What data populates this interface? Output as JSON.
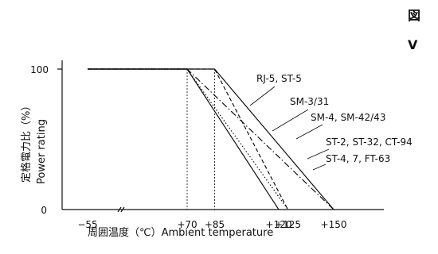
{
  "page": {
    "corner_text_1": "図",
    "corner_text_2": "V"
  },
  "chart_data": {
    "type": "line",
    "title": "",
    "xlabel": "周囲温度（℃）Ambient temperature",
    "ylabel_jp": "定格電力比（%）",
    "ylabel_en": "Power rating",
    "x_break_between": [
      -55,
      70
    ],
    "xlim": [
      -55,
      150
    ],
    "ylim": [
      0,
      100
    ],
    "x_ticks": [
      {
        "value": -55,
        "label": "−55"
      },
      {
        "value": 70,
        "label": "+70"
      },
      {
        "value": 85,
        "label": "+85"
      },
      {
        "value": 120,
        "label": "+120"
      },
      {
        "value": 125,
        "label": "+125"
      },
      {
        "value": 150,
        "label": "+150"
      }
    ],
    "y_ticks": [
      {
        "value": 0,
        "label": "0"
      },
      {
        "value": 100,
        "label": "100"
      }
    ],
    "series": [
      {
        "name": "RJ-5, ST-5",
        "style": "dash",
        "x": [
          -55,
          85,
          125
        ],
        "y": [
          100,
          100,
          0
        ]
      },
      {
        "name": "SM-3/31",
        "style": "dot",
        "x": [
          -55,
          70,
          125
        ],
        "y": [
          100,
          100,
          0
        ]
      },
      {
        "name": "SM-4, SM-42/43",
        "style": "solid",
        "x": [
          -55,
          85,
          150
        ],
        "y": [
          100,
          100,
          0
        ]
      },
      {
        "name": "ST-2, ST-32, CT-94",
        "style": "dashdot",
        "x": [
          -55,
          70,
          150
        ],
        "y": [
          100,
          100,
          0
        ]
      },
      {
        "name": "ST-4, 7, FT-63",
        "style": "solid",
        "x": [
          -55,
          70,
          120
        ],
        "y": [
          100,
          100,
          0
        ]
      }
    ]
  }
}
